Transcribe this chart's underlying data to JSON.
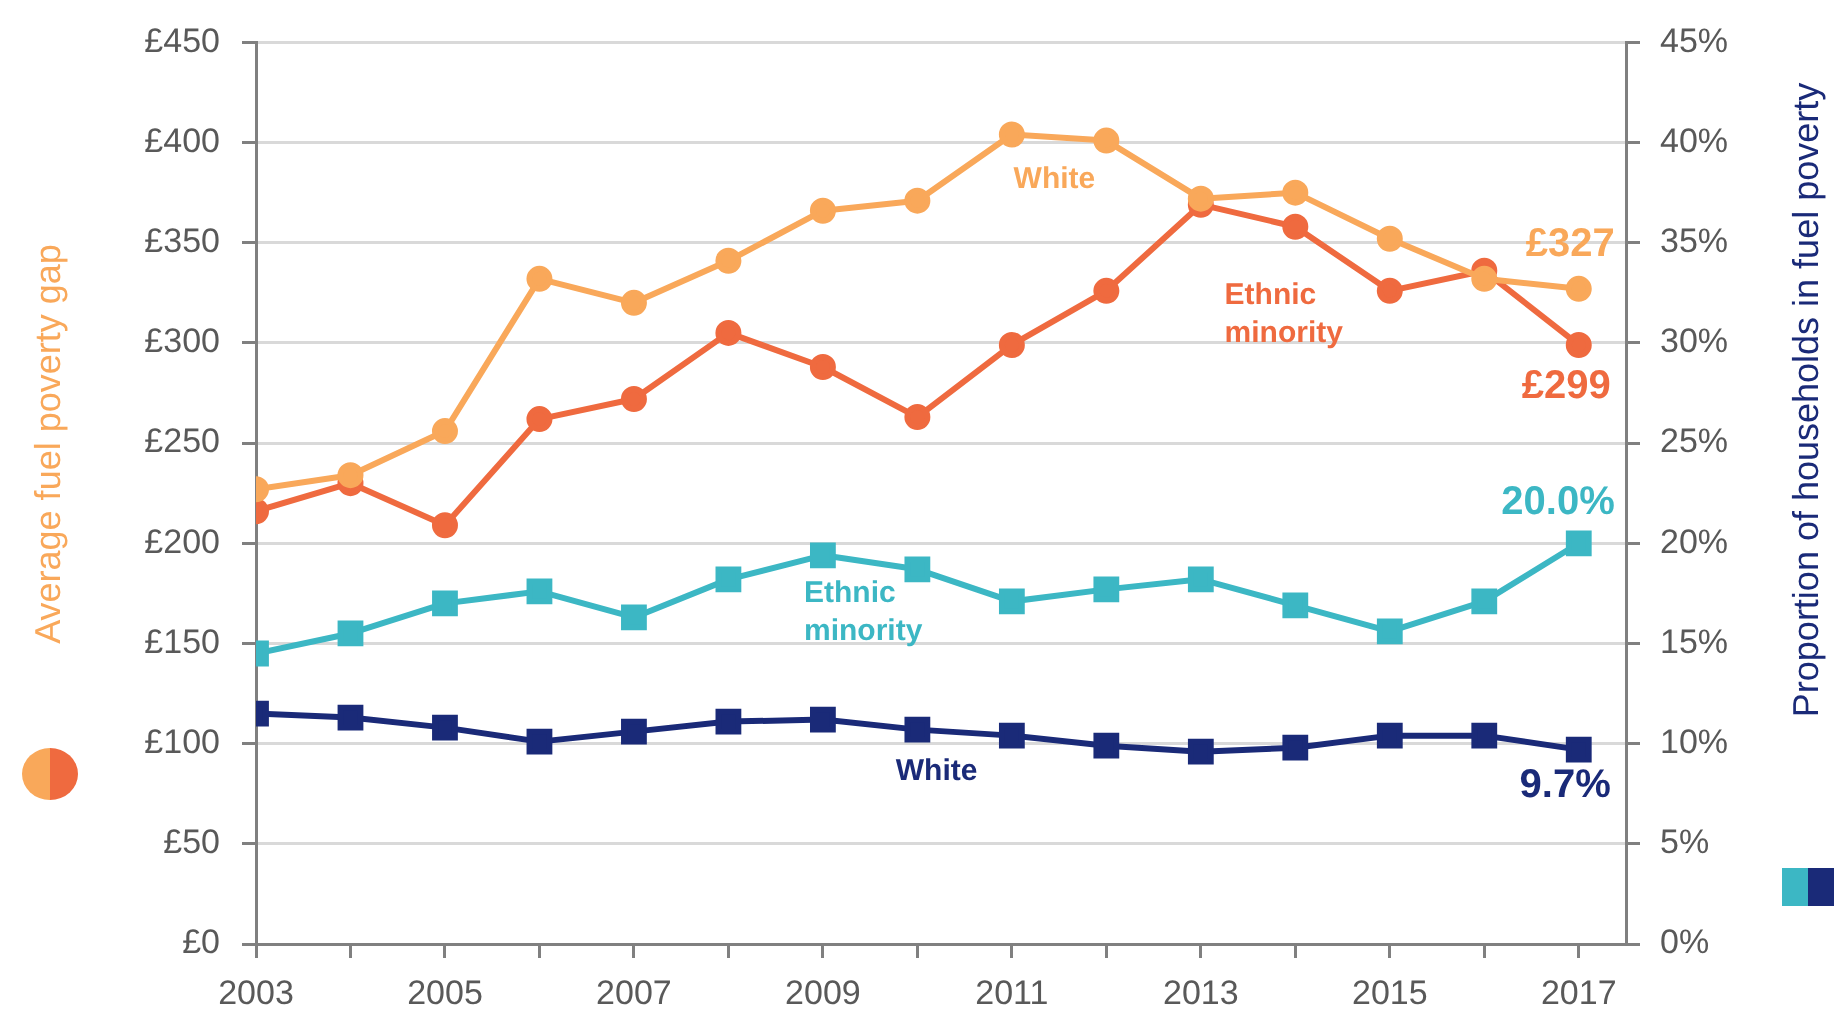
{
  "chart_data": {
    "type": "line",
    "x": [
      2003,
      2004,
      2005,
      2006,
      2007,
      2008,
      2009,
      2010,
      2011,
      2012,
      2013,
      2014,
      2015,
      2016,
      2017
    ],
    "xlim": [
      2003,
      2017.5
    ],
    "xticks": [
      2003,
      {
        "value": 2004,
        "label": null
      },
      2005,
      {
        "value": 2006,
        "label": null
      },
      2007,
      {
        "value": 2008,
        "label": null
      },
      2009,
      {
        "value": 2010,
        "label": null
      },
      2011,
      {
        "value": 2012,
        "label": null
      },
      2013,
      {
        "value": 2014,
        "label": null
      },
      2015,
      {
        "value": 2016,
        "label": null
      },
      2017
    ],
    "ylim": [
      0,
      450
    ],
    "yticks": [
      {
        "value": 0,
        "label": "£0"
      },
      {
        "value": 50,
        "label": "£50"
      },
      {
        "value": 100,
        "label": "£100"
      },
      {
        "value": 150,
        "label": "£150"
      },
      {
        "value": 200,
        "label": "£200"
      },
      {
        "value": 250,
        "label": "£250"
      },
      {
        "value": 300,
        "label": "£300"
      },
      {
        "value": 350,
        "label": "£350"
      },
      {
        "value": 400,
        "label": "£400"
      },
      {
        "value": 450,
        "label": "£450"
      }
    ],
    "y2lim": [
      0,
      45
    ],
    "y2ticks": [
      {
        "value": 0,
        "label": "0%"
      },
      {
        "value": 5,
        "label": "5%"
      },
      {
        "value": 10,
        "label": "10%"
      },
      {
        "value": 15,
        "label": "15%"
      },
      {
        "value": 20,
        "label": "20%"
      },
      {
        "value": 25,
        "label": "25%"
      },
      {
        "value": 30,
        "label": "30%"
      },
      {
        "value": 35,
        "label": "35%"
      },
      {
        "value": 40,
        "label": "40%"
      },
      {
        "value": 45,
        "label": "45%"
      }
    ],
    "ylabel": "Average fuel poverty gap",
    "y2label": "Proportion of households in fuel poverty",
    "grid": "y",
    "series": [
      {
        "name": "White",
        "color": "#f9a85a",
        "marker": "circle",
        "values": [
          227,
          234,
          256,
          332,
          320,
          341,
          366,
          371,
          404,
          401,
          372,
          375,
          352,
          332,
          327
        ],
        "value_labels": [
          null,
          null,
          null,
          null,
          null,
          null,
          null,
          null,
          null,
          null,
          null,
          null,
          null,
          null,
          "£327"
        ]
      },
      {
        "name": "Ethnic minority",
        "color": "#ef6a3f",
        "marker": "circle",
        "values": [
          216,
          230,
          209,
          262,
          272,
          305,
          288,
          263,
          299,
          326,
          369,
          358,
          326,
          336,
          299
        ],
        "value_labels": [
          null,
          null,
          null,
          null,
          null,
          null,
          null,
          null,
          null,
          null,
          null,
          null,
          null,
          null,
          "£299"
        ]
      },
      {
        "name": "Ethnic minority",
        "color": "#3cb7c4",
        "marker": "square",
        "axis": "y2",
        "values": [
          14.5,
          15.5,
          17.0,
          17.6,
          16.3,
          18.2,
          19.4,
          18.7,
          17.1,
          17.7,
          18.2,
          16.9,
          15.6,
          17.1,
          20.0
        ],
        "value_labels": [
          null,
          null,
          null,
          null,
          null,
          null,
          null,
          null,
          null,
          null,
          null,
          null,
          null,
          null,
          "20.0%"
        ]
      },
      {
        "name": "White",
        "color": "#1a2a78",
        "marker": "square",
        "axis": "y2",
        "values": [
          11.5,
          11.3,
          10.8,
          10.1,
          10.6,
          11.1,
          11.2,
          10.7,
          10.4,
          9.9,
          9.6,
          9.8,
          10.4,
          10.4,
          9.7
        ],
        "value_labels": [
          null,
          null,
          null,
          null,
          null,
          null,
          null,
          null,
          null,
          null,
          null,
          null,
          null,
          null,
          "9.7%"
        ]
      }
    ]
  }
}
